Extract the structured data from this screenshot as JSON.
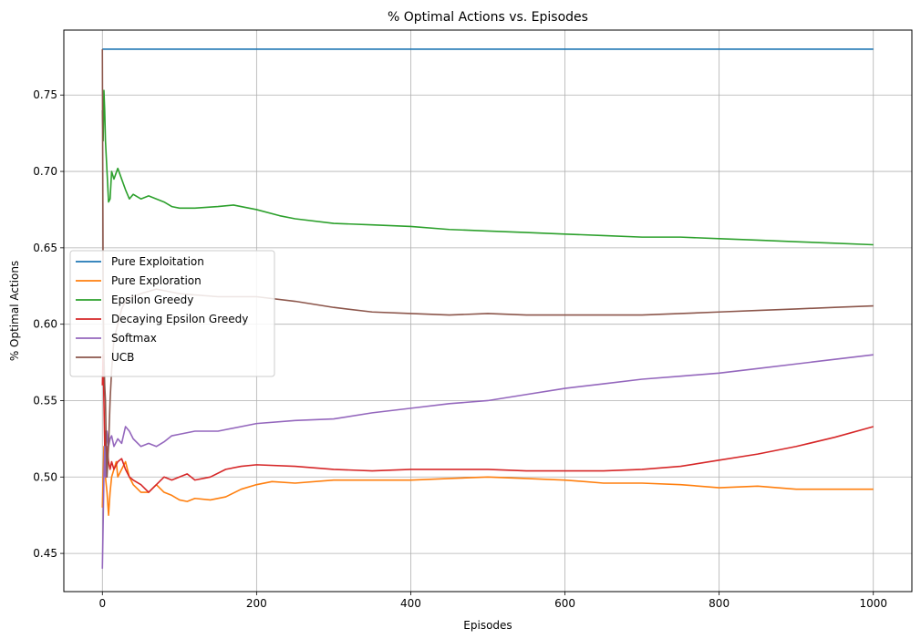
{
  "chart_data": {
    "type": "line",
    "title": "% Optimal Actions vs. Episodes",
    "xlabel": "Episodes",
    "ylabel": "% Optimal Actions",
    "xlim": [
      -50,
      1050
    ],
    "ylim": [
      0.425,
      0.7925
    ],
    "xticks": [
      0,
      200,
      400,
      600,
      800,
      1000
    ],
    "yticks": [
      0.45,
      0.5,
      0.55,
      0.6,
      0.65,
      0.7,
      0.75
    ],
    "xtick_labels": [
      "0",
      "200",
      "400",
      "600",
      "800",
      "1000"
    ],
    "ytick_labels": [
      "0.45",
      "0.50",
      "0.55",
      "0.60",
      "0.65",
      "0.70",
      "0.75"
    ],
    "grid": true,
    "legend": "center-left",
    "series": [
      {
        "name": "Pure Exploitation",
        "color": "#1f77b4",
        "x": [
          0,
          1000
        ],
        "y": [
          0.78,
          0.78
        ]
      },
      {
        "name": "Pure Exploration",
        "color": "#ff7f0e",
        "x": [
          0,
          2,
          4,
          6,
          8,
          10,
          12,
          15,
          18,
          20,
          25,
          30,
          35,
          40,
          50,
          60,
          70,
          80,
          90,
          100,
          110,
          120,
          140,
          160,
          180,
          200,
          220,
          250,
          300,
          350,
          400,
          450,
          500,
          550,
          600,
          650,
          700,
          750,
          800,
          850,
          900,
          950,
          1000
        ],
        "y": [
          0.48,
          0.52,
          0.5,
          0.49,
          0.475,
          0.49,
          0.5,
          0.505,
          0.51,
          0.5,
          0.505,
          0.51,
          0.5,
          0.495,
          0.49,
          0.49,
          0.495,
          0.49,
          0.488,
          0.485,
          0.484,
          0.486,
          0.485,
          0.487,
          0.492,
          0.495,
          0.497,
          0.496,
          0.498,
          0.498,
          0.498,
          0.499,
          0.5,
          0.499,
          0.498,
          0.496,
          0.496,
          0.495,
          0.493,
          0.494,
          0.492,
          0.492,
          0.492
        ]
      },
      {
        "name": "Epsilon Greedy",
        "color": "#2ca02c",
        "x": [
          0,
          1,
          2,
          3,
          4,
          5,
          6,
          8,
          10,
          12,
          15,
          20,
          25,
          30,
          35,
          40,
          50,
          60,
          70,
          80,
          90,
          100,
          120,
          150,
          170,
          200,
          230,
          250,
          300,
          350,
          400,
          450,
          500,
          550,
          600,
          650,
          700,
          750,
          800,
          850,
          900,
          950,
          1000
        ],
        "y": [
          0.74,
          0.72,
          0.753,
          0.74,
          0.72,
          0.71,
          0.7,
          0.68,
          0.682,
          0.7,
          0.695,
          0.702,
          0.695,
          0.688,
          0.682,
          0.685,
          0.682,
          0.684,
          0.682,
          0.68,
          0.677,
          0.676,
          0.676,
          0.677,
          0.678,
          0.675,
          0.671,
          0.669,
          0.666,
          0.665,
          0.664,
          0.662,
          0.661,
          0.66,
          0.659,
          0.658,
          0.657,
          0.657,
          0.656,
          0.655,
          0.654,
          0.653,
          0.652
        ]
      },
      {
        "name": "Decaying Epsilon Greedy",
        "color": "#d62728",
        "x": [
          0,
          1,
          2,
          3,
          4,
          5,
          6,
          8,
          10,
          12,
          15,
          20,
          25,
          30,
          35,
          40,
          50,
          60,
          70,
          80,
          90,
          100,
          110,
          120,
          140,
          160,
          180,
          200,
          250,
          300,
          350,
          400,
          450,
          500,
          550,
          600,
          650,
          700,
          750,
          800,
          850,
          900,
          950,
          1000
        ],
        "y": [
          0.56,
          0.58,
          0.55,
          0.52,
          0.53,
          0.5,
          0.52,
          0.51,
          0.505,
          0.51,
          0.505,
          0.51,
          0.512,
          0.505,
          0.5,
          0.498,
          0.495,
          0.49,
          0.495,
          0.5,
          0.498,
          0.5,
          0.502,
          0.498,
          0.5,
          0.505,
          0.507,
          0.508,
          0.507,
          0.505,
          0.504,
          0.505,
          0.505,
          0.505,
          0.504,
          0.504,
          0.504,
          0.505,
          0.507,
          0.511,
          0.515,
          0.52,
          0.526,
          0.533
        ]
      },
      {
        "name": "Softmax",
        "color": "#9467bd",
        "x": [
          0,
          1,
          2,
          3,
          4,
          5,
          6,
          8,
          10,
          12,
          15,
          20,
          25,
          30,
          35,
          40,
          50,
          60,
          70,
          80,
          90,
          100,
          120,
          150,
          200,
          250,
          300,
          350,
          400,
          450,
          500,
          550,
          600,
          650,
          700,
          750,
          800,
          850,
          900,
          950,
          1000
        ],
        "y": [
          0.44,
          0.47,
          0.5,
          0.52,
          0.5,
          0.515,
          0.53,
          0.52,
          0.525,
          0.527,
          0.52,
          0.525,
          0.522,
          0.533,
          0.53,
          0.525,
          0.52,
          0.522,
          0.52,
          0.523,
          0.527,
          0.528,
          0.53,
          0.53,
          0.535,
          0.537,
          0.538,
          0.542,
          0.545,
          0.548,
          0.55,
          0.554,
          0.558,
          0.561,
          0.564,
          0.566,
          0.568,
          0.571,
          0.574,
          0.577,
          0.58
        ]
      },
      {
        "name": "UCB",
        "color": "#8c564b",
        "x": [
          0,
          1,
          2,
          3,
          4,
          5,
          6,
          8,
          10,
          12,
          15,
          20,
          25,
          30,
          40,
          50,
          70,
          100,
          150,
          200,
          250,
          300,
          350,
          400,
          450,
          500,
          550,
          600,
          650,
          700,
          750,
          800,
          850,
          900,
          950,
          1000
        ],
        "y": [
          0.78,
          0.62,
          0.58,
          0.56,
          0.55,
          0.52,
          0.5,
          0.52,
          0.55,
          0.57,
          0.59,
          0.6,
          0.61,
          0.615,
          0.618,
          0.62,
          0.623,
          0.62,
          0.618,
          0.618,
          0.615,
          0.611,
          0.608,
          0.607,
          0.606,
          0.607,
          0.606,
          0.606,
          0.606,
          0.606,
          0.607,
          0.608,
          0.609,
          0.61,
          0.611,
          0.612
        ]
      }
    ]
  }
}
